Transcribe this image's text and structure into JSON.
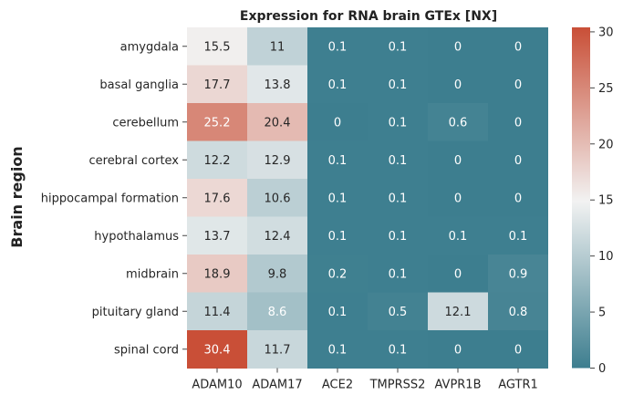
{
  "chart_data": {
    "type": "heatmap",
    "title": "Expression for RNA brain GTEx [NX]",
    "ylabel": "Brain region",
    "xlabel": "",
    "columns": [
      "ADAM10",
      "ADAM17",
      "ACE2",
      "TMPRSS2",
      "AVPR1B",
      "AGTR1"
    ],
    "rows": [
      "amygdala",
      "basal ganglia",
      "cerebellum",
      "cerebral cortex",
      "hippocampal formation",
      "hypothalamus",
      "midbrain",
      "pituitary gland",
      "spinal cord"
    ],
    "values": [
      [
        15.5,
        11,
        0.1,
        0.1,
        0,
        0
      ],
      [
        17.7,
        13.8,
        0.1,
        0.1,
        0,
        0
      ],
      [
        25.2,
        20.4,
        0,
        0.1,
        0.6,
        0
      ],
      [
        12.2,
        12.9,
        0.1,
        0.1,
        0,
        0
      ],
      [
        17.6,
        10.6,
        0.1,
        0.1,
        0,
        0
      ],
      [
        13.7,
        12.4,
        0.1,
        0.1,
        0.1,
        0.1
      ],
      [
        18.9,
        9.8,
        0.2,
        0.1,
        0,
        0.9
      ],
      [
        11.4,
        8.6,
        0.1,
        0.5,
        12.1,
        0.8
      ],
      [
        30.4,
        11.7,
        0.1,
        0.1,
        0,
        0
      ]
    ],
    "colorbar": {
      "range": [
        0,
        30.4
      ],
      "ticks": [
        0,
        5,
        10,
        15,
        20,
        25,
        30
      ],
      "colors": {
        "low": "#3d7e8f",
        "mid": "#f2f2f2",
        "high": "#c94f37"
      }
    }
  }
}
